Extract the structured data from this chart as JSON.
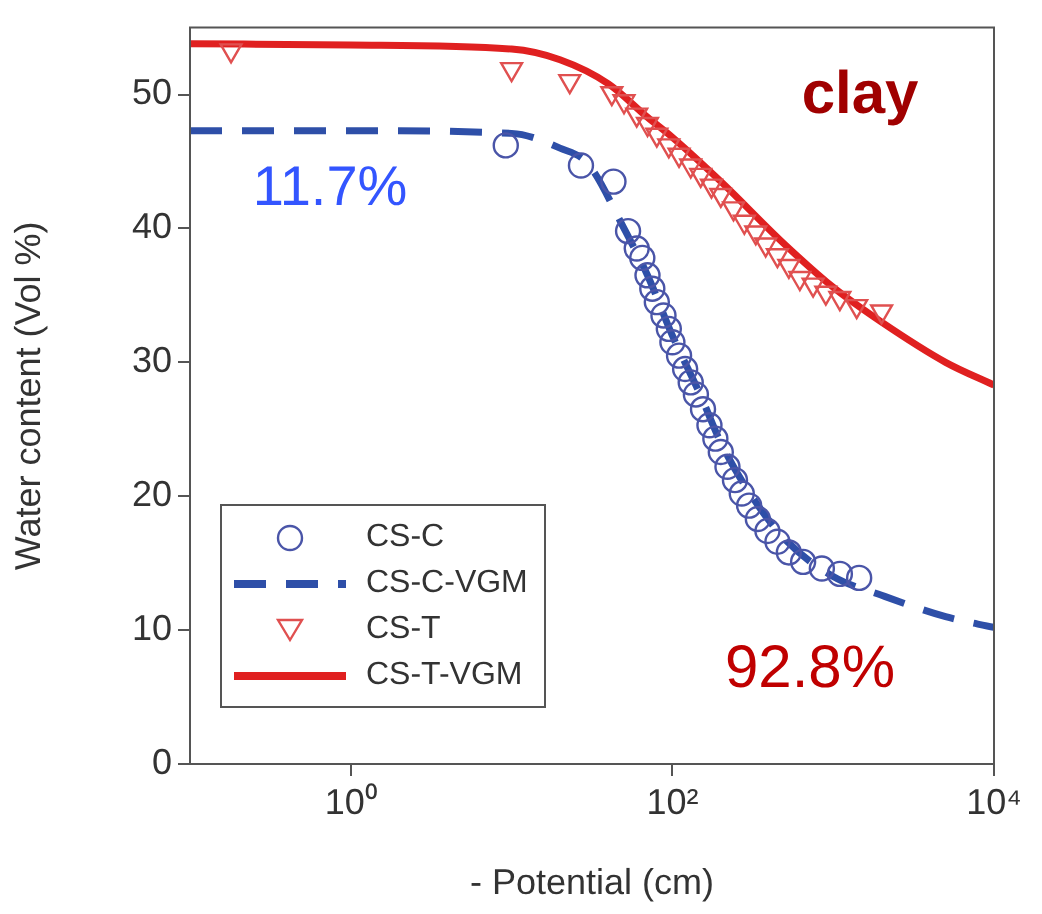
{
  "chart_data": {
    "type": "scatter",
    "xlabel": "- Potential (cm)",
    "ylabel": "Water content (Vol %)",
    "annotations": [
      "clay",
      "11.7%",
      "92.8%"
    ],
    "log": "x",
    "xlim": [
      0.1,
      10000
    ],
    "xticks": [
      {
        "value": 1,
        "label": "10⁰"
      },
      {
        "value": 100,
        "label": "10²"
      },
      {
        "value": 10000,
        "label": "10⁴"
      }
    ],
    "ylim": [
      0,
      55
    ],
    "yticks": [
      0,
      10,
      20,
      30,
      40,
      50
    ],
    "grid": false,
    "legend": "bottom left",
    "series": [
      {
        "name": "CS-C",
        "type": "scatter",
        "marker": "circle",
        "color": "#4a55a8",
        "x": [
          9.2,
          27,
          43,
          53,
          60,
          65,
          70,
          75,
          80,
          88,
          95,
          100,
          110,
          120,
          130,
          140,
          155,
          170,
          185,
          200,
          220,
          245,
          270,
          300,
          340,
          390,
          450,
          530,
          650,
          850,
          1100,
          1450
        ],
        "values": [
          46.2,
          44.7,
          43.5,
          39.8,
          38.5,
          37.8,
          36.5,
          35.5,
          34.5,
          33.5,
          32.5,
          31.5,
          30.5,
          29.5,
          28.5,
          27.6,
          26.5,
          25.3,
          24.3,
          23.3,
          22.2,
          21.2,
          20.2,
          19.3,
          18.3,
          17.4,
          16.6,
          15.8,
          15.1,
          14.6,
          14.2,
          13.9
        ]
      },
      {
        "name": "CS-C-VGM",
        "type": "line",
        "marker": "none",
        "line_style": "dashed",
        "color": "#2e4fa8",
        "x": [
          0.1,
          1,
          10,
          20,
          30,
          50,
          70,
          100,
          150,
          200,
          300,
          500,
          1000,
          2000,
          5000,
          10000
        ],
        "values": [
          47.3,
          47.3,
          47.1,
          46,
          44.8,
          40,
          36.5,
          32,
          27.5,
          24,
          20.3,
          16.8,
          14,
          12.6,
          11,
          10.2
        ]
      },
      {
        "name": "CS-T",
        "type": "scatter",
        "marker": "triangle",
        "color": "#e05050",
        "x": [
          0.18,
          10,
          23,
          42,
          50,
          60,
          70,
          80,
          95,
          110,
          130,
          150,
          175,
          200,
          240,
          280,
          330,
          380,
          450,
          530,
          620,
          750,
          900,
          1100,
          1400,
          2000
        ],
        "values": [
          53.3,
          51.9,
          51,
          50.1,
          49.5,
          48.5,
          47.8,
          47,
          46.2,
          45.5,
          44.7,
          44,
          43.2,
          42.5,
          41.5,
          40.5,
          39.7,
          38.8,
          38,
          37.2,
          36.3,
          35.8,
          35.2,
          34.8,
          34.2,
          33.8
        ]
      },
      {
        "name": "CS-T-VGM",
        "type": "line",
        "marker": "none",
        "line_style": "solid",
        "color": "#e02020",
        "x": [
          0.1,
          1,
          10,
          20,
          40,
          70,
          100,
          200,
          500,
          1000,
          2000,
          5000,
          10000
        ],
        "values": [
          53.8,
          53.7,
          53.4,
          52.6,
          50.8,
          48.3,
          46.8,
          43.5,
          38.8,
          35.6,
          33,
          30,
          28.3
        ]
      }
    ]
  }
}
